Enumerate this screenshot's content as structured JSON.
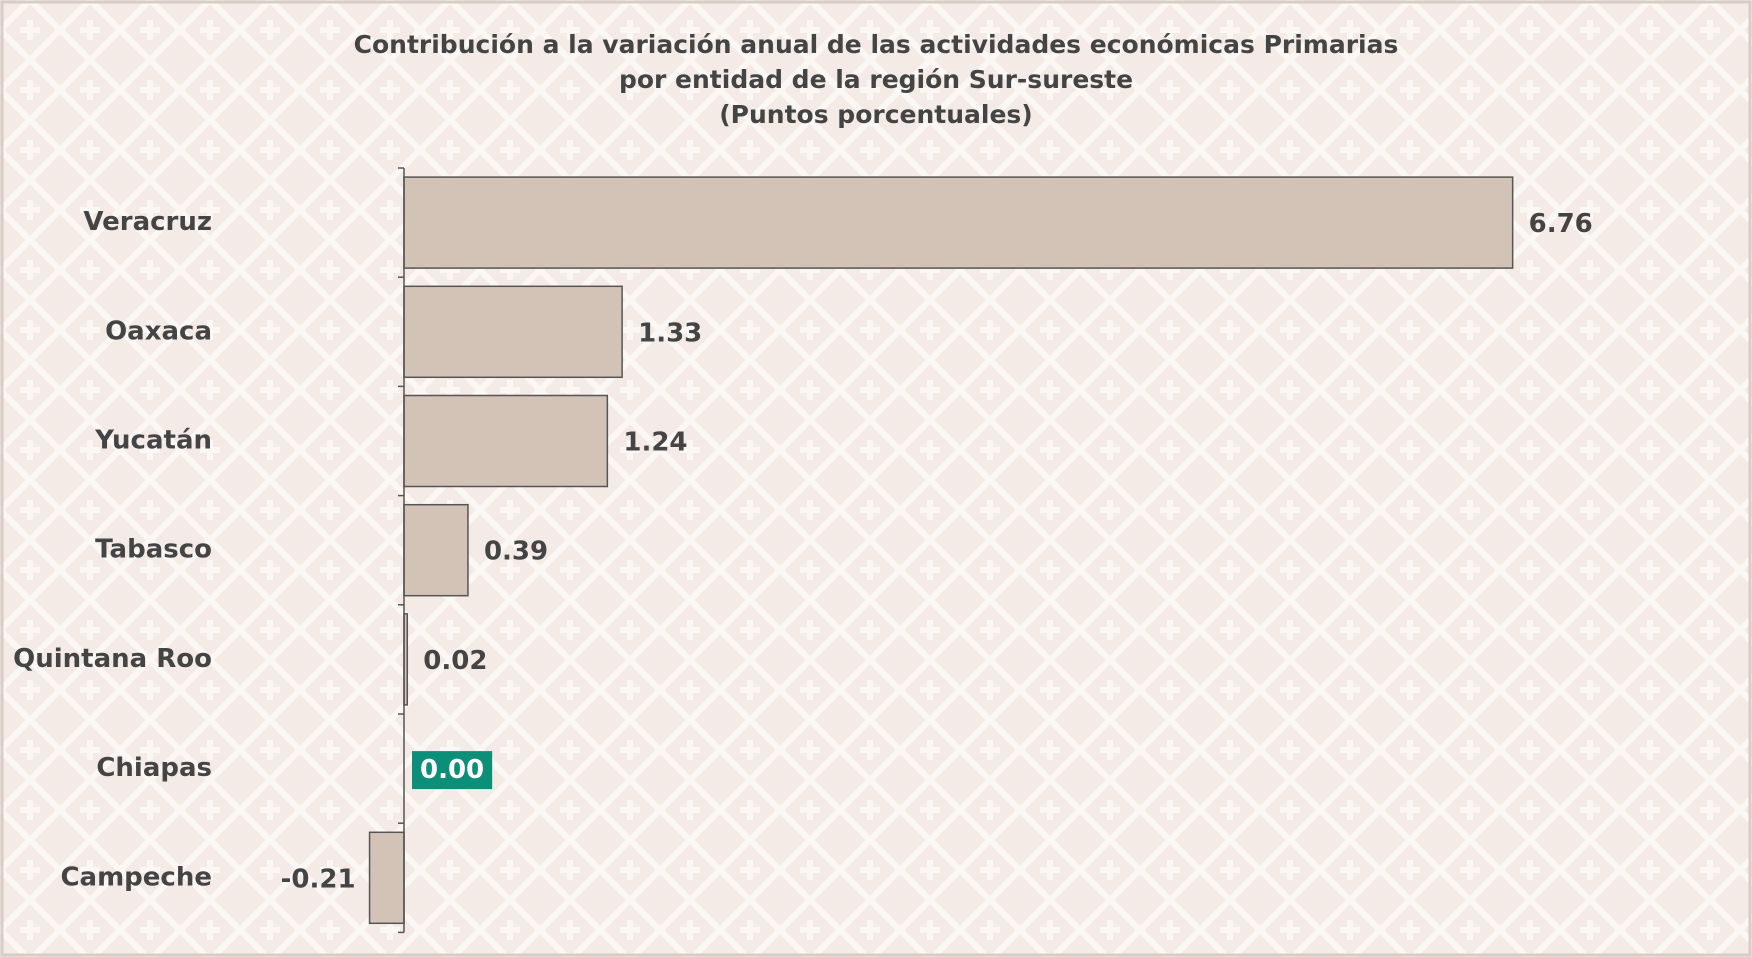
{
  "chart_data": {
    "type": "hbar",
    "title": [
      "Contribución a la variación anual de las actividades económicas Primarias",
      "por entidad de la región Sur-sureste",
      "(Puntos porcentuales)"
    ],
    "categories": [
      "Veracruz",
      "Oaxaca",
      "Yucatán",
      "Tabasco",
      "Quintana Roo",
      "Chiapas",
      "Campeche"
    ],
    "values": [
      6.76,
      1.33,
      1.24,
      0.39,
      0.02,
      0.0,
      -0.21
    ],
    "value_labels": [
      "6.76",
      "1.33",
      "1.24",
      "0.39",
      "0.02",
      "0.00",
      "-0.21"
    ],
    "color": "#d3c3b6",
    "highlight": {
      "index": 5,
      "color": "#0b8f78"
    },
    "xlim": [
      -1,
      8
    ]
  }
}
